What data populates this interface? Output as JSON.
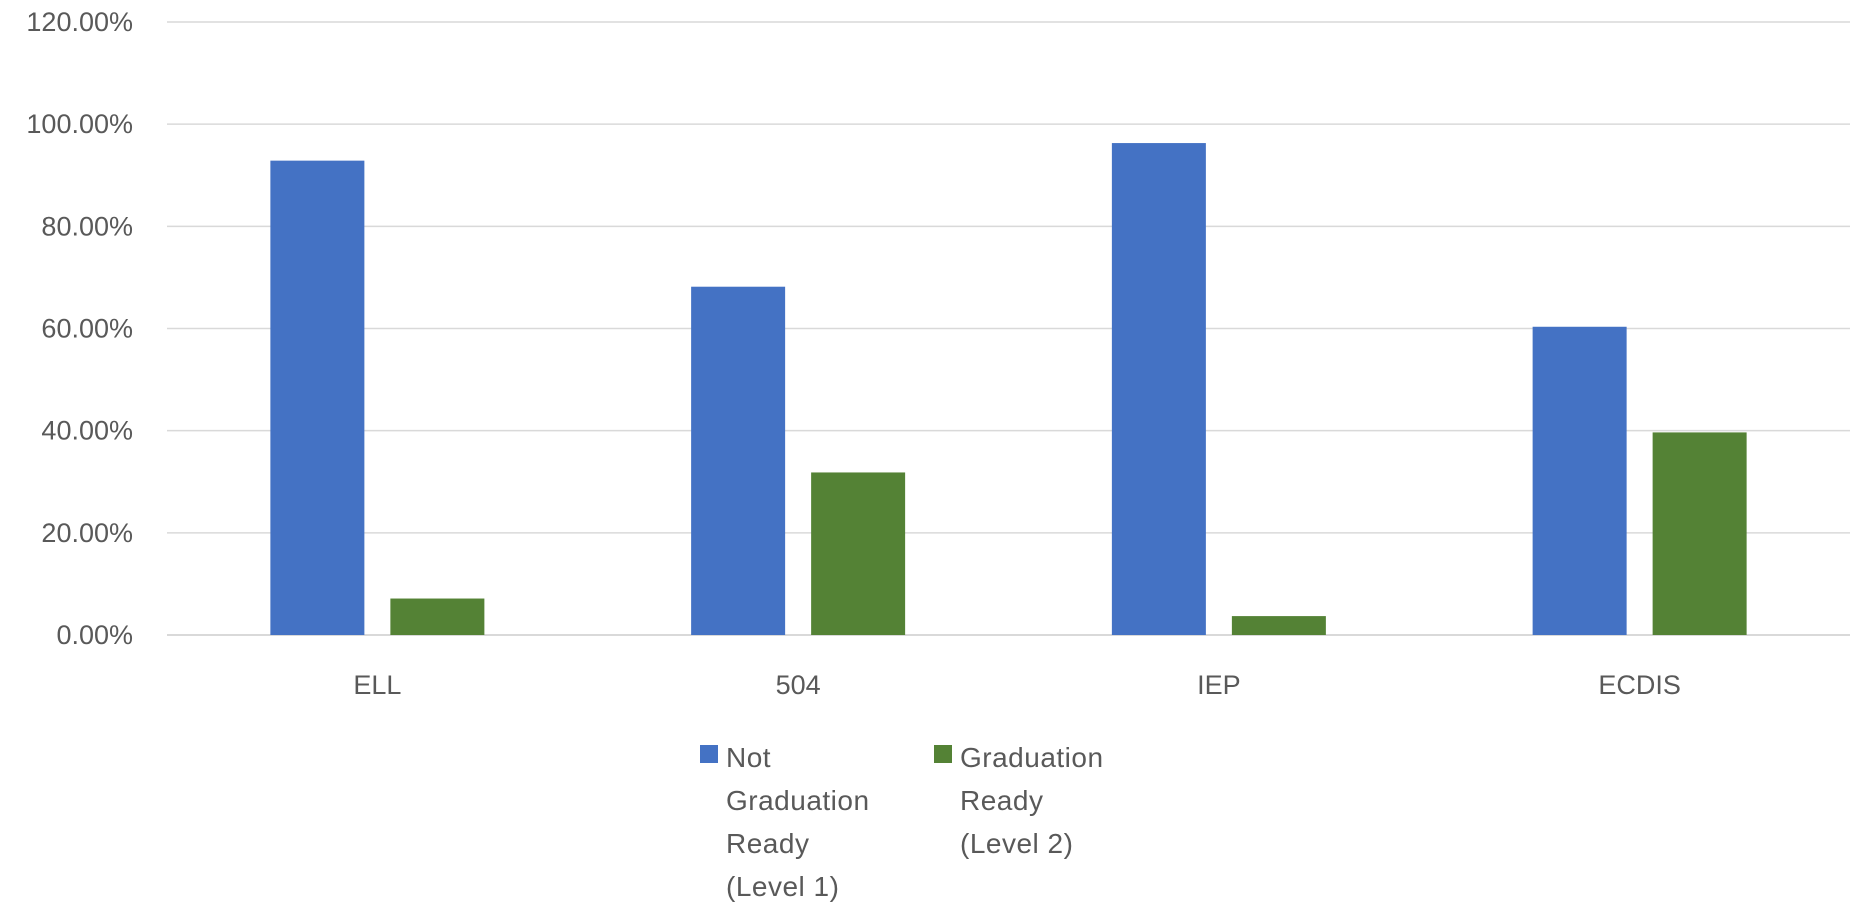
{
  "chart_data": {
    "type": "bar",
    "title": "",
    "xlabel": "",
    "ylabel": "",
    "categories": [
      "ELL",
      "504",
      "IEP",
      "ECDIS"
    ],
    "series": [
      {
        "name": "Not Graduation Ready (Level 1)",
        "color": "#4472C4",
        "values": [
          92.86,
          68.18,
          96.3,
          60.34
        ]
      },
      {
        "name": "Graduation Ready (Level 2)",
        "color": "#548235",
        "values": [
          7.14,
          31.82,
          3.7,
          39.66
        ]
      }
    ],
    "ylim": [
      0,
      120
    ],
    "yticks": [
      0,
      20,
      40,
      60,
      80,
      100,
      120
    ],
    "ytick_labels": [
      "0.00%",
      "20.00%",
      "40.00%",
      "60.00%",
      "80.00%",
      "100.00%",
      "120.00%"
    ],
    "grid": true,
    "legend_position": "bottom"
  }
}
